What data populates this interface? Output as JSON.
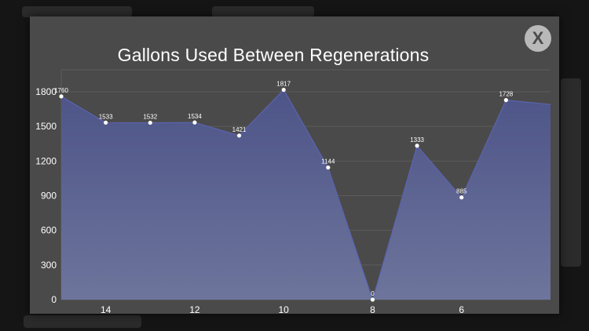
{
  "modal": {
    "title": "Gallons Used Between Regenerations",
    "close_label": "X"
  },
  "colors": {
    "modal_background": "#4a4a4a",
    "area_fill_top": "#4d5488",
    "area_fill_bottom": "#6d759c",
    "line": "#5b63b0",
    "gridline": "#5c5c5c",
    "close_button": "#b9b9b9"
  },
  "chart_data": {
    "type": "area",
    "title": "",
    "xlabel": "",
    "ylabel": "",
    "x": [
      15,
      14,
      13,
      12,
      11,
      10,
      9,
      8,
      7,
      6,
      5,
      4
    ],
    "values": [
      1760,
      1533,
      1532,
      1534,
      1421,
      1817,
      1144,
      0,
      1333,
      885,
      1728,
      null
    ],
    "data_labels": [
      "1760",
      "1533",
      "1532",
      "1534",
      "1421",
      "1817",
      "1144",
      "0",
      "1333",
      "885",
      "1728",
      ""
    ],
    "last_point_unlabeled_approx": 1690,
    "x_tick_labels": [
      "14",
      "12",
      "10",
      "8",
      "6"
    ],
    "x_tick_values": [
      14,
      12,
      10,
      8,
      6
    ],
    "y_tick_labels": [
      "0",
      "300",
      "600",
      "900",
      "1200",
      "1500",
      "1800"
    ],
    "y_tick_values": [
      0,
      300,
      600,
      900,
      1200,
      1500,
      1800
    ],
    "ylim": [
      0,
      1800
    ],
    "grid": true,
    "markers": true,
    "legend": "none"
  }
}
